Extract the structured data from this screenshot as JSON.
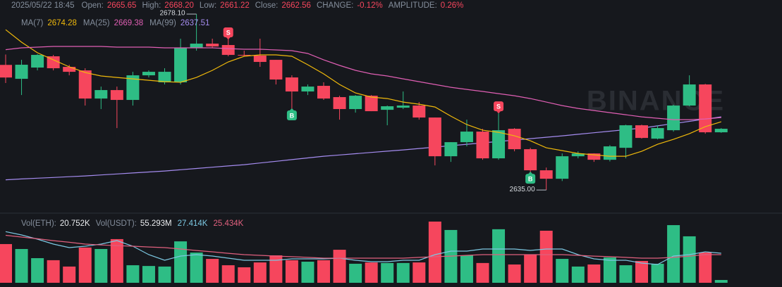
{
  "chart_data": [
    {
      "type": "candlestick",
      "info": {
        "time": "2025/05/22 18:45",
        "items": [
          {
            "label": "Open:",
            "value": "2665.65"
          },
          {
            "label": "High:",
            "value": "2668.20"
          },
          {
            "label": "Low:",
            "value": "2661.22"
          },
          {
            "label": "Close:",
            "value": "2662.56"
          },
          {
            "label": "CHANGE:",
            "value": "-0.12%"
          },
          {
            "label": "AMPLITUDE:",
            "value": "0.26%"
          }
        ]
      },
      "watermark": "BINANCE",
      "ylim": [
        2629.85,
        2681.55
      ],
      "up_color": "#2ebd85",
      "down_color": "#f6465d",
      "open": [
        2665.65,
        2662.24,
        2665.0,
        2667.76,
        2665.17,
        2664.31,
        2657.41,
        2659.48,
        2657.07,
        2663.1,
        2661.38,
        2661.38,
        2669.83,
        2670.86,
        2670.52,
        2668.1,
        2667.93,
        2666.89,
        2662.58,
        2659.14,
        2660.52,
        2657.76,
        2654.83,
        2658.1,
        2654.65,
        2655.17,
        2655.69,
        2652.76,
        2643.27,
        2646.72,
        2649.31,
        2642.76,
        2650.0,
        2645.0,
        2639.83,
        2637.76,
        2643.27,
        2643.96,
        2642.41,
        2645.34,
        2650.86,
        2647.58,
        2649.65,
        2655.69,
        2660.86,
        2649.14
      ],
      "high": [
        2668.2,
        2666.89,
        2668.27,
        2668.1,
        2665.69,
        2664.83,
        2660.34,
        2660.34,
        2663.96,
        2664.31,
        2664.83,
        2672.07,
        2678.1,
        2672.07,
        2672.07,
        2669.14,
        2672.07,
        2666.89,
        2663.1,
        2660.86,
        2661.38,
        2658.1,
        2658.27,
        2658.27,
        2655.69,
        2659.14,
        2656.55,
        2652.76,
        2646.72,
        2652.24,
        2650.0,
        2653.96,
        2650.17,
        2645.34,
        2640.5,
        2643.96,
        2644.48,
        2644.0,
        2646.0,
        2651.0,
        2651.0,
        2650.86,
        2655.9,
        2663.1,
        2661.0,
        2650.17
      ],
      "low": [
        2661.22,
        2658.27,
        2664.31,
        2664.31,
        2663.1,
        2655.69,
        2654.83,
        2650.17,
        2655.69,
        2662.58,
        2660.86,
        2660.86,
        2669.14,
        2669.83,
        2667.76,
        2667.76,
        2665.17,
        2660.86,
        2654.83,
        2658.27,
        2657.07,
        2652.24,
        2653.96,
        2654.31,
        2650.86,
        2654.83,
        2652.24,
        2641.03,
        2641.89,
        2645.69,
        2642.41,
        2642.41,
        2644.48,
        2639.31,
        2635.0,
        2637.2,
        2642.76,
        2641.89,
        2642.0,
        2642.76,
        2647.6,
        2647.4,
        2649.3,
        2655.5,
        2648.79,
        2649.0
      ],
      "close": [
        2662.56,
        2665.69,
        2668.1,
        2664.83,
        2663.96,
        2657.41,
        2659.48,
        2657.07,
        2663.1,
        2663.96,
        2663.96,
        2669.83,
        2670.86,
        2670.17,
        2668.1,
        2667.93,
        2666.38,
        2662.07,
        2659.14,
        2660.34,
        2657.41,
        2654.83,
        2658.1,
        2654.31,
        2655.52,
        2655.69,
        2652.76,
        2643.27,
        2646.72,
        2649.31,
        2642.76,
        2649.65,
        2645.0,
        2639.83,
        2637.76,
        2643.27,
        2643.96,
        2642.41,
        2645.69,
        2650.86,
        2647.76,
        2650.17,
        2655.69,
        2660.86,
        2649.14,
        2650.0
      ],
      "series": [
        {
          "name": "MA(7)",
          "legend_value": "2674.28",
          "color": "#f0b90b",
          "values": [
            2674.28,
            2671.21,
            2668.62,
            2666.89,
            2665.17,
            2663.79,
            2662.93,
            2662.58,
            2662.24,
            2661.89,
            2661.55,
            2661.38,
            2662.58,
            2664.31,
            2666.38,
            2667.76,
            2668.1,
            2668.1,
            2667.76,
            2665.69,
            2663.45,
            2660.86,
            2658.79,
            2657.76,
            2657.41,
            2656.55,
            2656.03,
            2655.34,
            2653.1,
            2651.03,
            2649.65,
            2649.14,
            2648.27,
            2647.07,
            2645.34,
            2644.65,
            2643.96,
            2643.62,
            2643.27,
            2643.27,
            2644.48,
            2646.21,
            2647.41,
            2648.79,
            2650.52,
            2651.72
          ]
        },
        {
          "name": "MA(25)",
          "legend_value": "2669.38",
          "color": "#e05fb4",
          "values": [
            2669.38,
            2669.83,
            2670.0,
            2670.17,
            2670.17,
            2670.17,
            2670.17,
            2670.0,
            2670.0,
            2670.0,
            2669.83,
            2669.83,
            2669.83,
            2669.83,
            2669.65,
            2669.48,
            2669.48,
            2669.31,
            2669.14,
            2668.45,
            2666.89,
            2665.52,
            2664.31,
            2663.45,
            2662.93,
            2662.24,
            2661.55,
            2660.86,
            2660.17,
            2659.65,
            2659.14,
            2658.62,
            2658.1,
            2657.41,
            2656.55,
            2655.69,
            2655.0,
            2654.48,
            2653.96,
            2653.45,
            2652.93,
            2652.58,
            2652.24,
            2652.24,
            2652.41,
            2652.76
          ]
        },
        {
          "name": "MA(99)",
          "legend_value": "2637.51",
          "color": "#a58cf0",
          "values": [
            2637.51,
            2637.7,
            2637.89,
            2638.07,
            2638.26,
            2638.45,
            2638.69,
            2638.93,
            2639.17,
            2639.41,
            2639.65,
            2639.96,
            2640.27,
            2640.59,
            2640.9,
            2641.21,
            2641.62,
            2642.03,
            2642.45,
            2642.86,
            2643.27,
            2643.58,
            2643.89,
            2644.21,
            2644.52,
            2644.83,
            2645.17,
            2645.52,
            2645.86,
            2646.21,
            2646.55,
            2646.89,
            2647.24,
            2647.58,
            2647.93,
            2648.27,
            2648.65,
            2649.03,
            2649.41,
            2649.79,
            2650.17,
            2650.72,
            2651.27,
            2651.82,
            2652.38,
            2652.93
          ]
        }
      ],
      "annotations": [
        {
          "text": "2678.10",
          "index": 12
        },
        {
          "text": "2635.00",
          "index": 34
        }
      ],
      "trades": [
        {
          "text": "S",
          "index": 14
        },
        {
          "text": "B",
          "index": 18
        },
        {
          "text": "S",
          "index": 31
        },
        {
          "text": "B",
          "index": 33
        }
      ]
    },
    {
      "type": "bar",
      "info": [
        {
          "label": "Vol(ETH):",
          "value": "20.752K"
        },
        {
          "label": "Vol(USDT):",
          "value": "55.293M"
        }
      ],
      "ylim": [
        0,
        37.7
      ],
      "values": [
        20.752,
        18.1,
        13.2,
        12.1,
        8.7,
        18.9,
        18.1,
        23.4,
        9.4,
        9.0,
        8.7,
        22.2,
        16.2,
        12.8,
        9.4,
        8.3,
        10.9,
        14.7,
        12.1,
        11.3,
        12.1,
        17.7,
        10.2,
        10.9,
        10.6,
        10.6,
        10.9,
        32.8,
        28.3,
        14.7,
        10.6,
        28.7,
        9.8,
        15.1,
        27.9,
        12.8,
        8.7,
        9.8,
        13.6,
        9.4,
        11.7,
        10.2,
        30.9,
        24.9,
        16.2,
        1.5
      ],
      "series": [
        {
          "legend_value": "27.414K",
          "color": "#7cc8e2",
          "values": [
            27.414,
            25.64,
            23.37,
            20.74,
            18.85,
            19.6,
            20.74,
            22.62,
            19.6,
            15.08,
            12.06,
            14.33,
            15.08,
            14.33,
            13.2,
            12.06,
            12.06,
            12.06,
            12.82,
            12.82,
            12.82,
            13.2,
            12.06,
            11.31,
            11.31,
            12.06,
            12.06,
            15.08,
            16.97,
            16.97,
            18.1,
            18.1,
            18.1,
            17.34,
            18.1,
            18.1,
            15.08,
            12.82,
            12.06,
            12.06,
            10.56,
            9.8,
            14.33,
            15.08,
            16.59,
            15.83
          ]
        },
        {
          "legend_value": "25.434K",
          "color": "#e0607e",
          "values": [
            25.434,
            24.5,
            23.6,
            22.6,
            21.7,
            20.74,
            20.3,
            19.9,
            19.6,
            19.2,
            18.85,
            18.1,
            17.3,
            16.6,
            15.8,
            15.08,
            14.7,
            14.3,
            14.0,
            13.6,
            13.2,
            13.2,
            13.2,
            13.2,
            13.2,
            13.2,
            13.6,
            14.0,
            14.3,
            14.7,
            15.08,
            15.08,
            15.08,
            15.08,
            15.08,
            15.08,
            14.7,
            14.3,
            14.0,
            13.6,
            13.2,
            13.2,
            13.6,
            14.3,
            15.1,
            15.08
          ]
        }
      ]
    }
  ]
}
